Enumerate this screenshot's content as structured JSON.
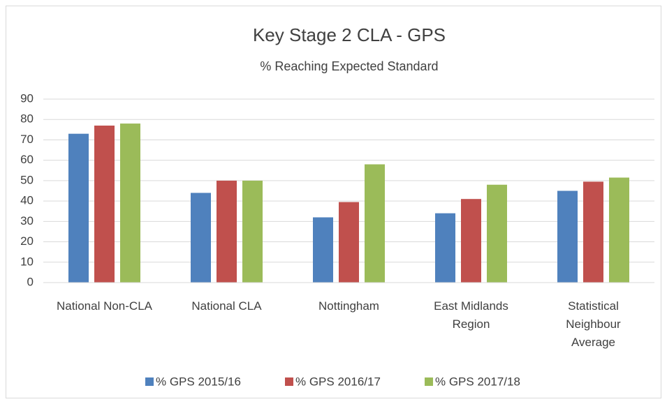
{
  "chart_data": {
    "type": "bar",
    "title": "Key Stage 2 CLA - GPS",
    "subtitle": "% Reaching Expected Standard",
    "categories": [
      "National Non-CLA",
      "National CLA",
      "Nottingham",
      "East Midlands Region",
      "Statistical Neighbour Average"
    ],
    "series": [
      {
        "name": "% GPS 2015/16",
        "color": "#4f81bd",
        "values": [
          73,
          44,
          32,
          34,
          45
        ]
      },
      {
        "name": "% GPS 2016/17",
        "color": "#c0504d",
        "values": [
          77,
          50,
          39.5,
          41,
          49.5
        ]
      },
      {
        "name": "% GPS 2017/18",
        "color": "#9bbb59",
        "values": [
          78,
          50,
          58,
          48,
          51.5
        ]
      }
    ],
    "ylim": [
      0,
      90
    ],
    "yticks": [
      0,
      10,
      20,
      30,
      40,
      50,
      60,
      70,
      80,
      90
    ],
    "grid": true,
    "legend": "bottom"
  }
}
